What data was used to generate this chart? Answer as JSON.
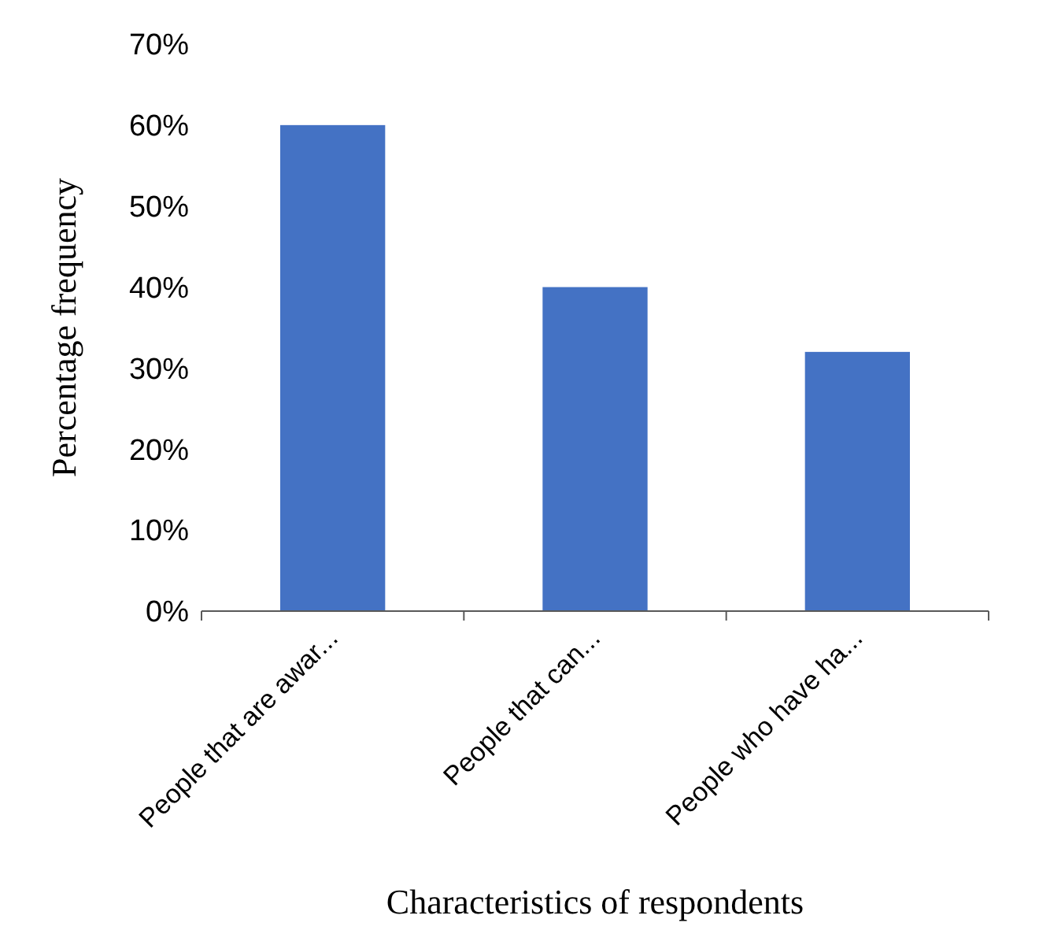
{
  "chart_data": {
    "type": "bar",
    "xlabel": "Characteristics of respondents",
    "ylabel": "Percentage frequency",
    "categories": [
      "People that are awar...",
      "People that can...",
      "People who have ha..."
    ],
    "values": [
      60,
      40,
      32
    ],
    "color": "#4472c4",
    "ylim": [
      0,
      70
    ],
    "yticks": [
      {
        "value": 0,
        "label": "0%"
      },
      {
        "value": 10,
        "label": "10%"
      },
      {
        "value": 20,
        "label": "20%"
      },
      {
        "value": 30,
        "label": "30%"
      },
      {
        "value": 40,
        "label": "40%"
      },
      {
        "value": 50,
        "label": "50%"
      },
      {
        "value": 60,
        "label": "60%"
      },
      {
        "value": 70,
        "label": "70%"
      }
    ],
    "grid": false
  }
}
